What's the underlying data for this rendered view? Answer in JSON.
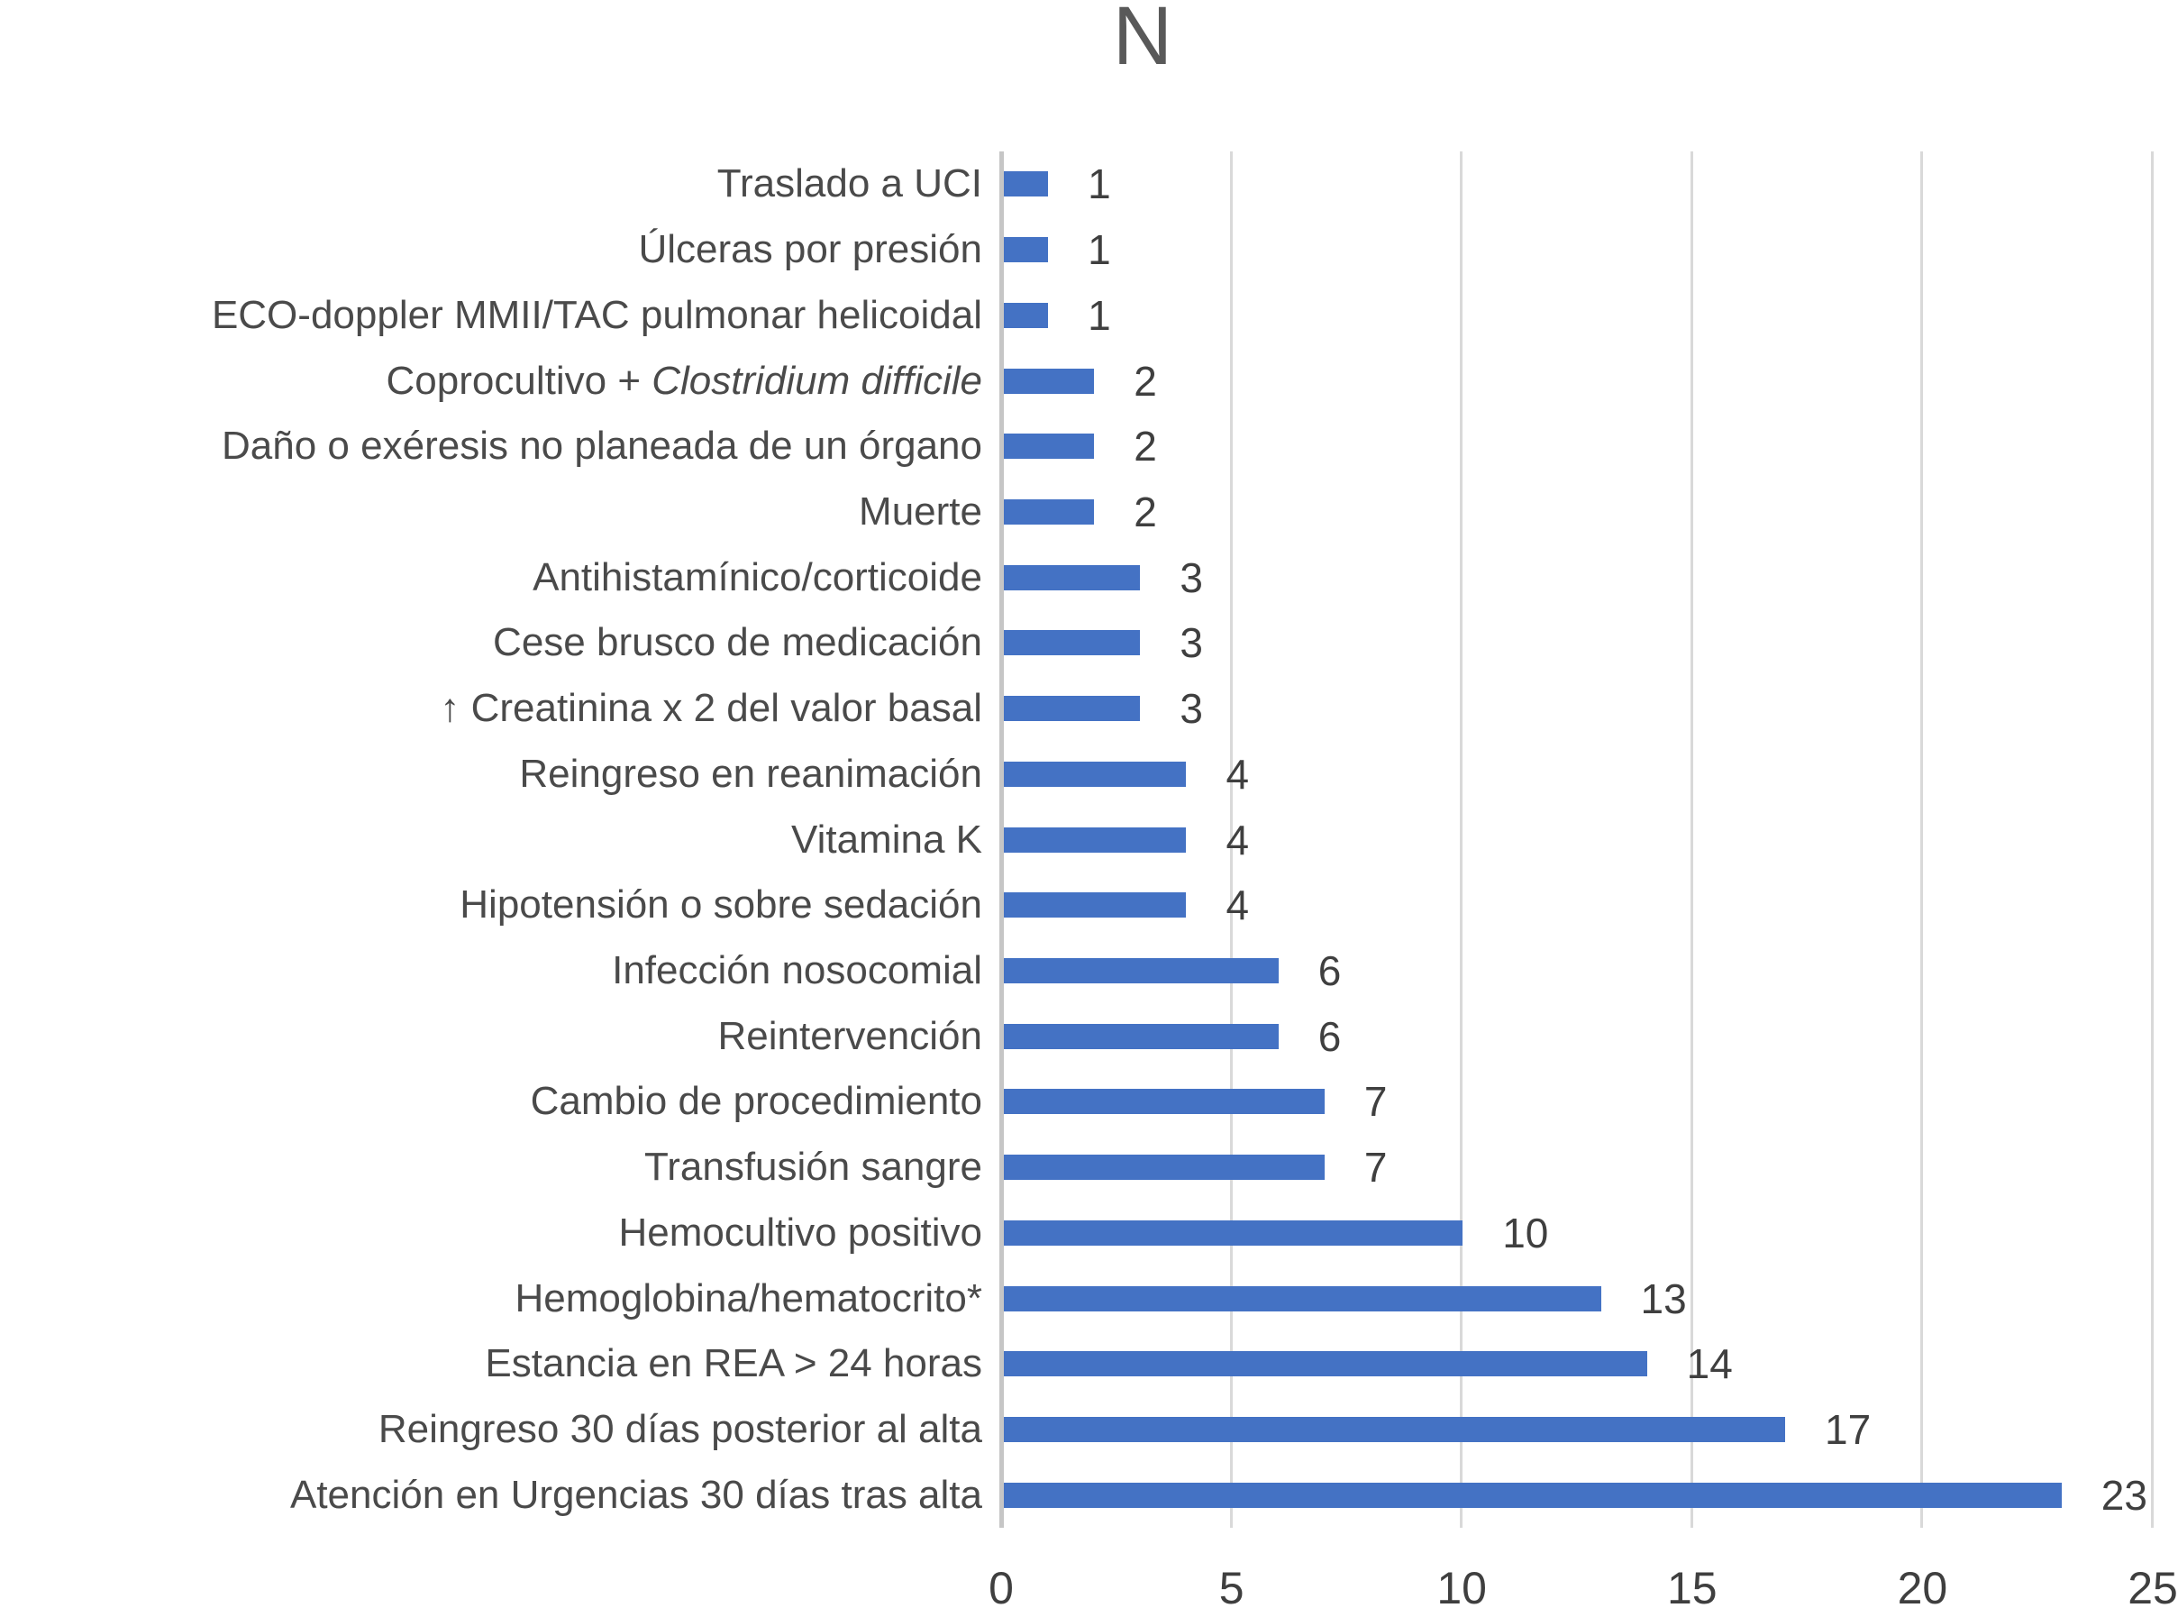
{
  "chart_data": {
    "type": "bar",
    "orientation": "horizontal",
    "title": "N",
    "categories": [
      {
        "label": "Traslado a UCI"
      },
      {
        "label": "Úlceras por presión"
      },
      {
        "label": "ECO-doppler MMII/TAC pulmonar helicoidal"
      },
      {
        "label": "Coprocultivo + ",
        "italic": "Clostridium difficile"
      },
      {
        "label": "Daño o exéresis no planeada de un órgano"
      },
      {
        "label": "Muerte"
      },
      {
        "label": "Antihistamínico/corticoide"
      },
      {
        "label": "Cese brusco de medicación"
      },
      {
        "label": "↑ Creatinina x 2 del valor basal"
      },
      {
        "label": "Reingreso en reanimación"
      },
      {
        "label": "Vitamina K"
      },
      {
        "label": "Hipotensión o sobre sedación"
      },
      {
        "label": "Infección nosocomial"
      },
      {
        "label": "Reintervención"
      },
      {
        "label": "Cambio de procedimiento"
      },
      {
        "label": "Transfusión sangre"
      },
      {
        "label": "Hemocultivo positivo"
      },
      {
        "label": "Hemoglobina/hematocrito*"
      },
      {
        "label": "Estancia en REA > 24 horas"
      },
      {
        "label": "Reingreso 30 días posterior al alta"
      },
      {
        "label": "Atención en Urgencias 30 días tras alta"
      }
    ],
    "values": [
      1,
      1,
      1,
      2,
      2,
      2,
      3,
      3,
      3,
      4,
      4,
      4,
      6,
      6,
      7,
      7,
      10,
      13,
      14,
      17,
      23
    ],
    "x_ticks": [
      "0",
      "5",
      "10",
      "15",
      "20",
      "25"
    ],
    "xlim": [
      0,
      25
    ],
    "xlabel": "",
    "ylabel": "",
    "grid": true,
    "legend": false,
    "data_labels": true,
    "colors": {
      "bar": "#4472C4",
      "gridline": "#D9D9D9",
      "axis_line": "#C6C6C6",
      "category_text": "#4A4A4A",
      "value_text": "#3F3F3F",
      "tick_text": "#3F3F3F",
      "title_text": "#595959"
    }
  }
}
